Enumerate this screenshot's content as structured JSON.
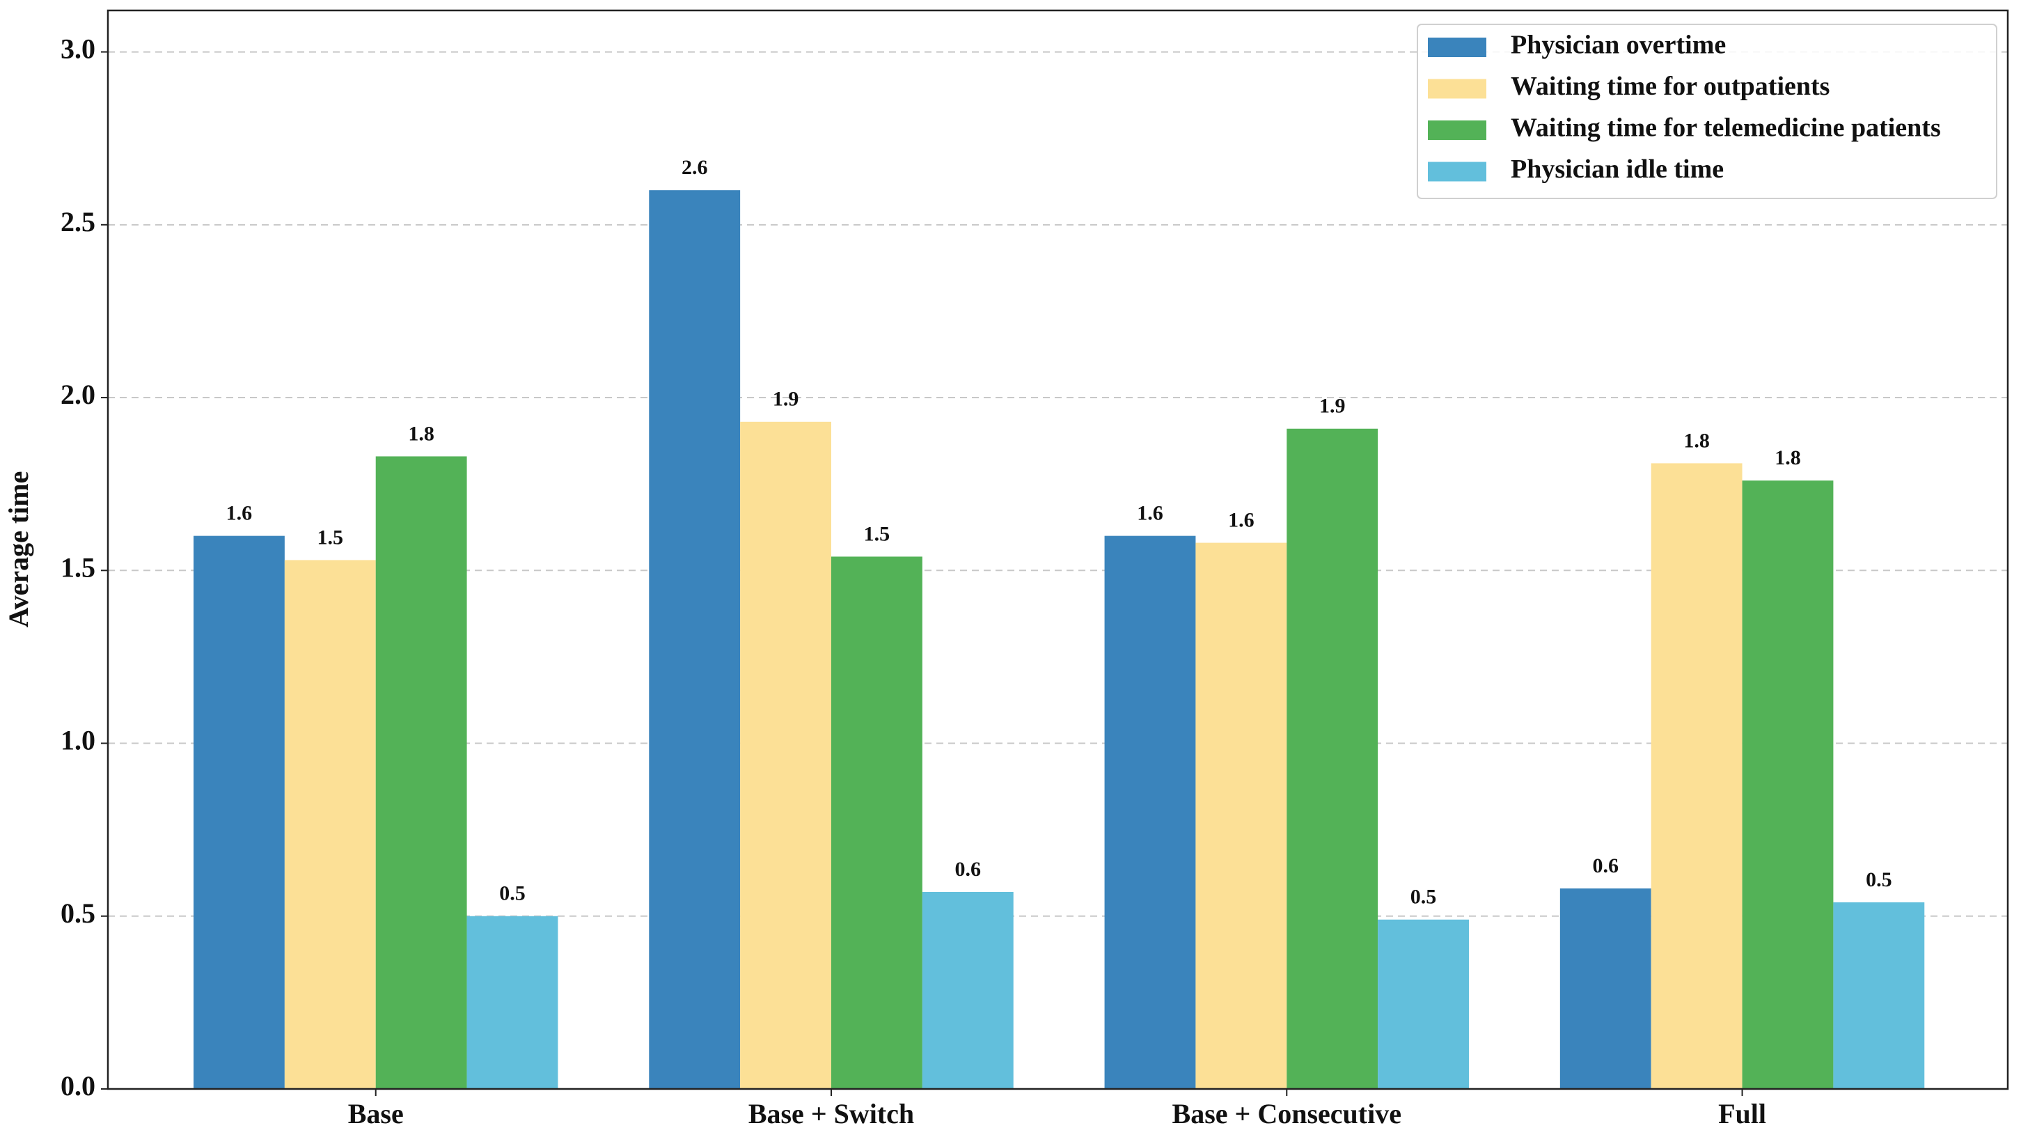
{
  "chart_data": {
    "type": "bar",
    "y_label": "Average time",
    "categories": [
      "Base",
      "Base + Switch",
      "Base + Consecutive",
      "Full"
    ],
    "series": [
      {
        "name": "Physician overtime",
        "color": "#3a84bc",
        "values": [
          1.6,
          2.6,
          1.6,
          0.58
        ],
        "value_labels": [
          "1.6",
          "2.6",
          "1.6",
          "0.6"
        ]
      },
      {
        "name": "Waiting time for outpatients",
        "color": "#fce096",
        "values": [
          1.53,
          1.93,
          1.58,
          1.81
        ],
        "value_labels": [
          "1.5",
          "1.9",
          "1.6",
          "1.8"
        ]
      },
      {
        "name": "Waiting time for telemedicine patients",
        "color": "#53b257",
        "values": [
          1.83,
          1.54,
          1.91,
          1.76
        ],
        "value_labels": [
          "1.8",
          "1.5",
          "1.9",
          "1.8"
        ]
      },
      {
        "name": "Physician idle time",
        "color": "#62bfdc",
        "values": [
          0.5,
          0.57,
          0.49,
          0.54
        ],
        "value_labels": [
          "0.5",
          "0.6",
          "0.5",
          "0.5"
        ]
      }
    ],
    "ylim": [
      0,
      3.12
    ],
    "yticks": [
      {
        "value": 0,
        "label": "0.0"
      },
      0.5,
      {
        "value": 1,
        "label": "1.0"
      },
      1.5,
      {
        "value": 2,
        "label": "2.0"
      },
      2.5,
      {
        "value": 3,
        "label": "3.0"
      }
    ],
    "grid": true,
    "legend_position": "upper right"
  }
}
